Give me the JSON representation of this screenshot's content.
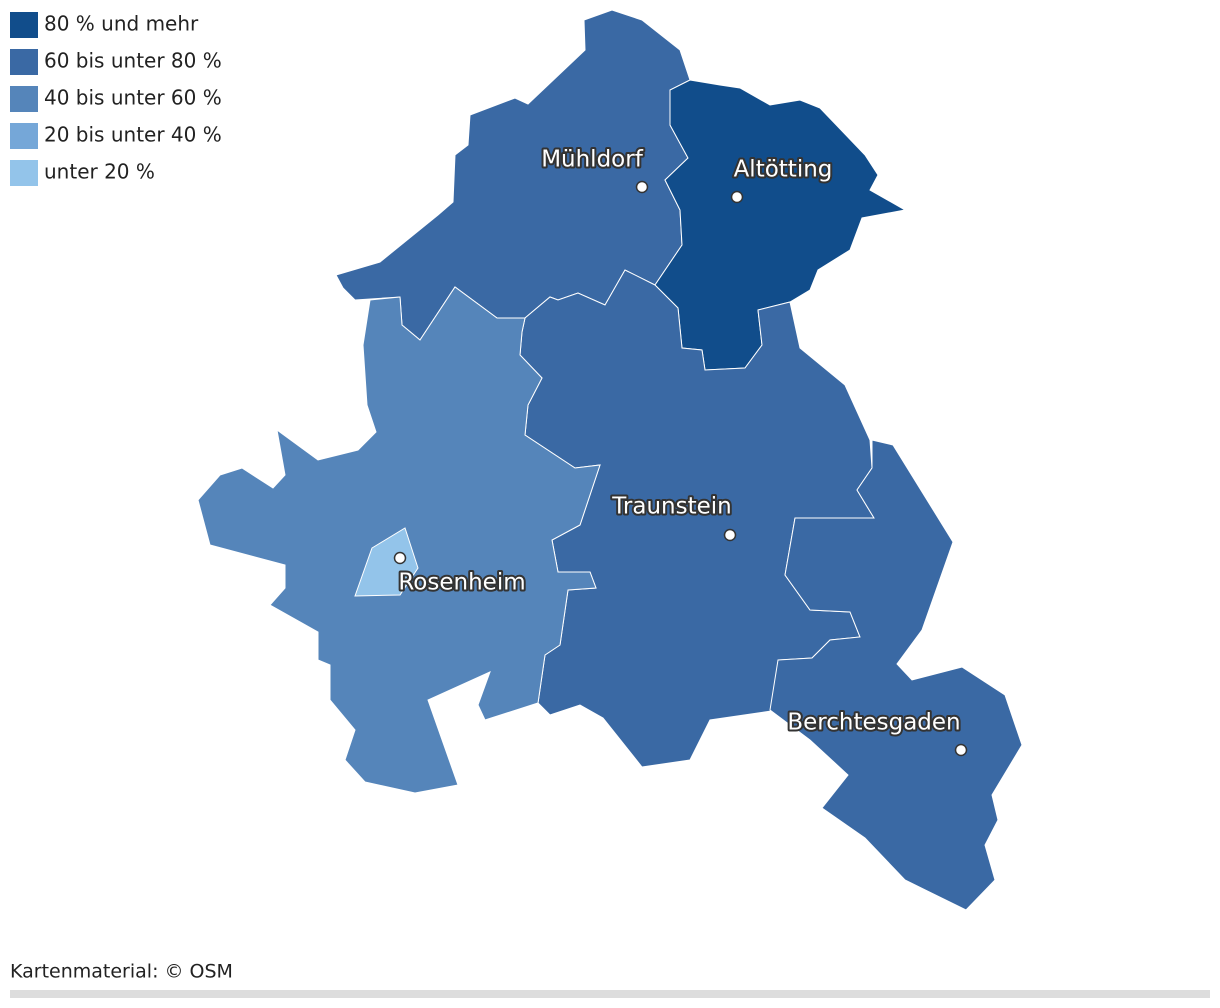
{
  "legend": [
    {
      "label": "80 % und mehr",
      "color": "#114d8b"
    },
    {
      "label": "60 bis unter 80 %",
      "color": "#3a69a4"
    },
    {
      "label": "40 bis unter 60 %",
      "color": "#5585ba"
    },
    {
      "label": "20 bis unter 40 %",
      "color": "#75a7d8"
    },
    {
      "label": "unter 20 %",
      "color": "#93c4ea"
    }
  ],
  "regions": [
    {
      "color": "#3a69a4",
      "name": "Mühldorf"
    },
    {
      "color": "#114d8b",
      "name": "Altötting"
    },
    {
      "color": "#3a69a4",
      "name": "Traunstein"
    },
    {
      "color": "#3a69a4",
      "name": "Berchtesgaden"
    },
    {
      "color": "#5585ba"
    },
    {
      "color": "#93c4ea",
      "name": "Rosenheim"
    }
  ],
  "attribution": "Kartenmaterial: © OSM"
}
